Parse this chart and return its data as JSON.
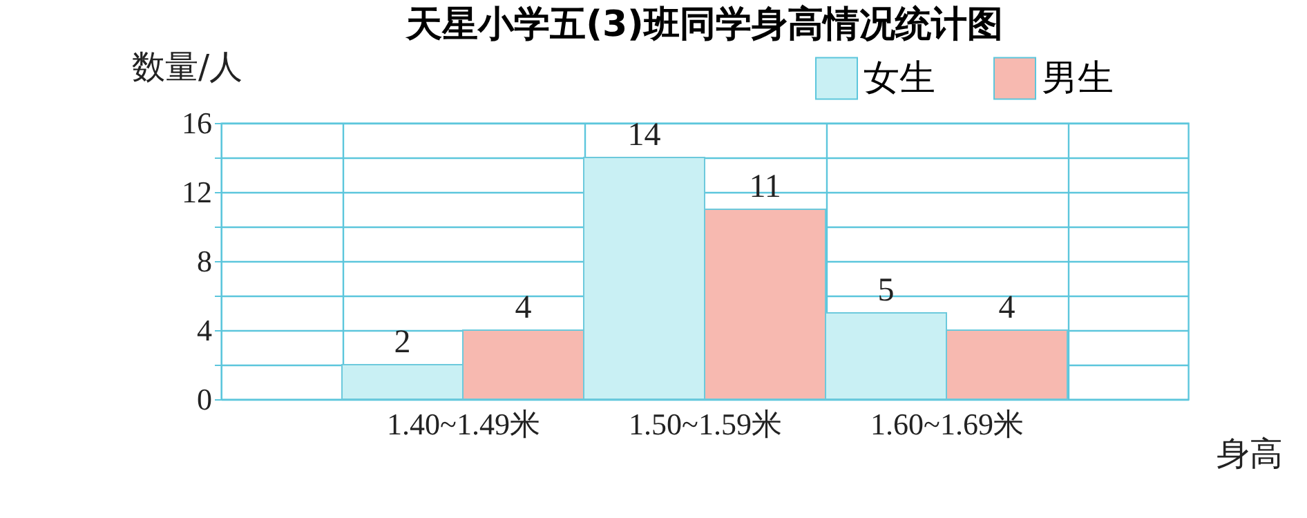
{
  "chart_data": {
    "type": "bar",
    "title": "天星小学五(3)班同学身高情况统计图",
    "xlabel": "身高",
    "ylabel": "数量/人",
    "categories": [
      "1.40~1.49米",
      "1.50~1.59米",
      "1.60~1.69米"
    ],
    "series": [
      {
        "name": "女生",
        "color": "#c9f0f4",
        "values": [
          2,
          14,
          5
        ]
      },
      {
        "name": "男生",
        "color": "#f7b9b0",
        "values": [
          4,
          11,
          4
        ]
      }
    ],
    "ylim": [
      0,
      16
    ],
    "yticks": [
      0,
      {
        "value": 2,
        "label": null
      },
      4,
      {
        "value": 6,
        "label": null
      },
      8,
      {
        "value": 10,
        "label": null
      },
      12,
      {
        "value": 14,
        "label": null
      },
      16
    ],
    "grid": true,
    "legend": "top right",
    "data_labels": true
  }
}
